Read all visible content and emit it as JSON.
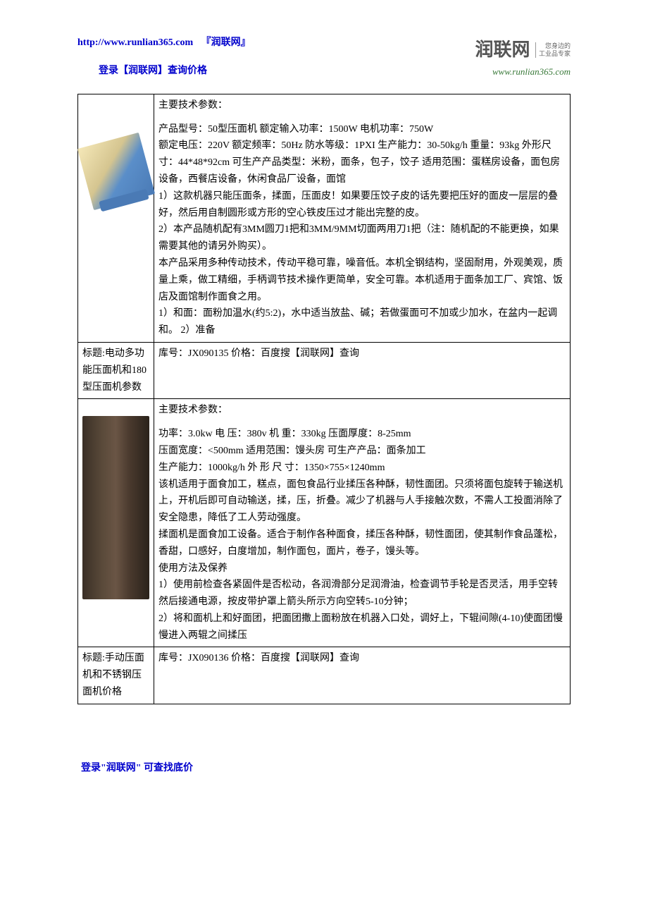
{
  "header": {
    "url": "http://www.runlian365.com",
    "brand": "『润联网』",
    "login_text": "登录【润联网】查询价格"
  },
  "logo": {
    "title": "润联网",
    "side_line1": "您身边的",
    "side_line2": "工业品专家",
    "url": "www.runlian365.com"
  },
  "product1": {
    "spec_header": "主要技术参数：",
    "spec_body": "产品型号：50型压面机 额定输入功率：1500W 电机功率：750W\n额定电压：220V 额定频率：50Hz 防水等级：1PXI 生产能力：30-50kg/h 重量：93kg 外形尺寸：44*48*92cm 可生产产品类型：米粉，面条，包子，饺子 适用范围：蛋糕房设备，面包房设备，西餐店设备，休闲食品厂设备，面馆\n1）这款机器只能压面条，揉面，压面皮！如果要压饺子皮的话先要把压好的面皮一层层的叠好，然后用自制圆形或方形的空心铁皮压过才能出完整的皮。\n2）本产品随机配有3MM圆刀1把和3MM/9MM切面两用刀1把（注：随机配的不能更换，如果需要其他的请另外购买）。\n本产品采用多种传动技术，传动平稳可靠，噪音低。本机全钢结构，坚固耐用，外观美观，质量上乘，做工精细，手柄调节技术操作更简单，安全可靠。本机适用于面条加工厂、宾馆、饭店及面馆制作面食之用。\n1）和面：面粉加温水(约5:2)，水中适当放盐、碱；若做蛋面可不加或少加水，在盆内一起调和。 2）准备",
    "title_label": "标题:电动多功能压面机和180型压面机参数",
    "sku_text": "库号：JX090135 价格：百度搜【润联网】查询"
  },
  "product2": {
    "spec_header": "主要技术参数：",
    "spec_body": "功率：3.0kw 电 压：380v 机 重：330kg 压面厚度：8-25mm\n压面宽度：<500mm 适用范围：馒头房 可生产产品：面条加工\n生产能力：1000kg/h 外 形 尺 寸：1350×755×1240mm\n该机适用于面食加工，糕点，面包食品行业揉压各种酥，韧性面团。只须将面包旋转于输送机上，开机后即可自动输送，揉，压，折叠。减少了机器与人手接触次数，不需人工投面消除了安全隐患，降低了工人劳动强度。\n揉面机是面食加工设备。适合于制作各种面食，揉压各种酥，韧性面团，使其制作食品蓬松，香甜，口感好，白度增加，制作面包，面片，卷子，馒头等。\n使用方法及保养\n1）使用前检查各紧固件是否松动，各润滑部分足润滑油，检查调节手轮是否灵活，用手空转然后接通电源，按皮带护罩上箭头所示方向空转5-10分钟；\n2）将和面机上和好面团，把面团撒上面粉放在机器入口处，调好上，下辊间隙(4-10)使面团慢慢进入两辊之间揉压",
    "title_label": "标题:手动压面机和不锈钢压面机价格",
    "sku_text": "库号：JX090136 价格：百度搜【润联网】查询"
  },
  "footer": {
    "text": "登录\"润联网\" 可查找底价"
  }
}
